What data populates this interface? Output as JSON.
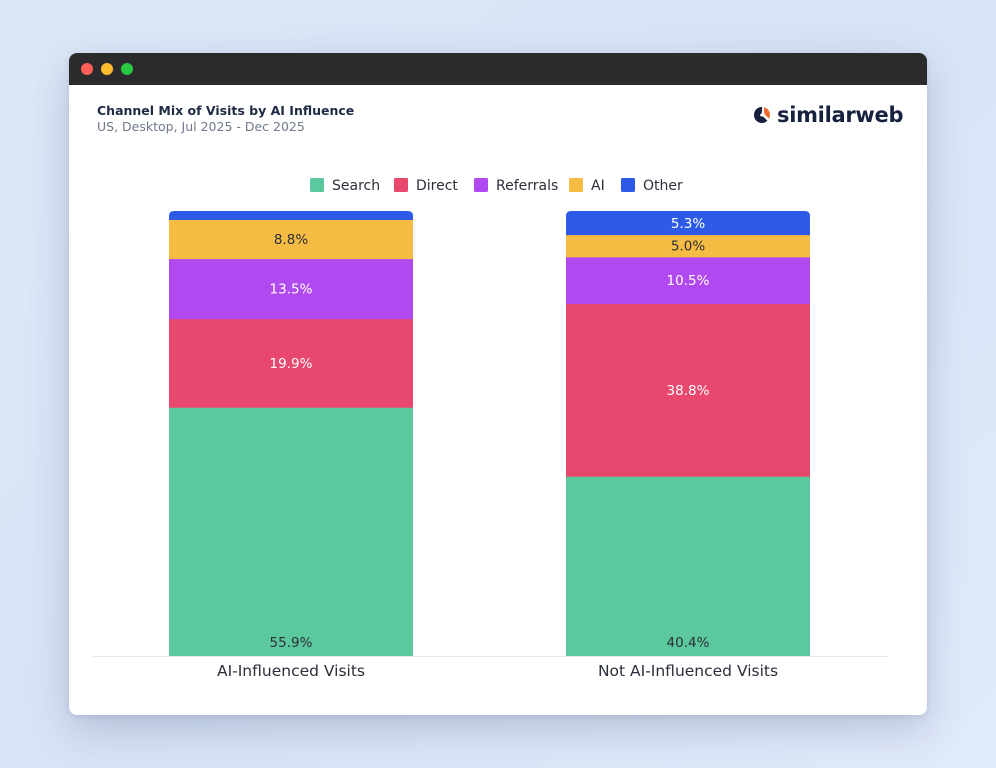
{
  "window": {
    "title": "Channel Mix of Visits by AI Influence",
    "subtitle": "US, Desktop, Jul 2025 - Dec 2025",
    "brand": "similarweb",
    "brand_icon": "similarweb-logo-icon",
    "controls": [
      "close-dot",
      "minimize-dot",
      "maximize-dot"
    ]
  },
  "colors": {
    "Search": "#5cc89d",
    "Direct": "#e8476e",
    "Referrals": "#b149f0",
    "AI": "#f6bb42",
    "Other": "#2e5ae8",
    "label_dark": "#2a2f3a",
    "label_light": "#ffffff"
  },
  "chart_data": {
    "type": "bar",
    "stacked": true,
    "title": "Channel Mix of Visits by AI Influence",
    "subtitle": "US, Desktop, Jul 2025 - Dec 2025",
    "categories": [
      "AI-Influenced Visits",
      "Not AI-Influenced Visits"
    ],
    "series": [
      {
        "name": "Search",
        "values": [
          55.9,
          40.4
        ],
        "labels": [
          "55.9%",
          "40.4%"
        ]
      },
      {
        "name": "Direct",
        "values": [
          19.9,
          38.8
        ],
        "labels": [
          "19.9%",
          "38.8%"
        ]
      },
      {
        "name": "Referrals",
        "values": [
          13.5,
          10.5
        ],
        "labels": [
          "13.5%",
          "10.5%"
        ]
      },
      {
        "name": "AI",
        "values": [
          8.8,
          5.0
        ],
        "labels": [
          "8.8%",
          "5.0%"
        ]
      },
      {
        "name": "Other",
        "values": [
          1.9,
          5.3
        ],
        "labels": [
          "",
          "5.3%"
        ]
      }
    ],
    "ylim": [
      0,
      100
    ],
    "legend_position": "top-center",
    "grid": false
  }
}
